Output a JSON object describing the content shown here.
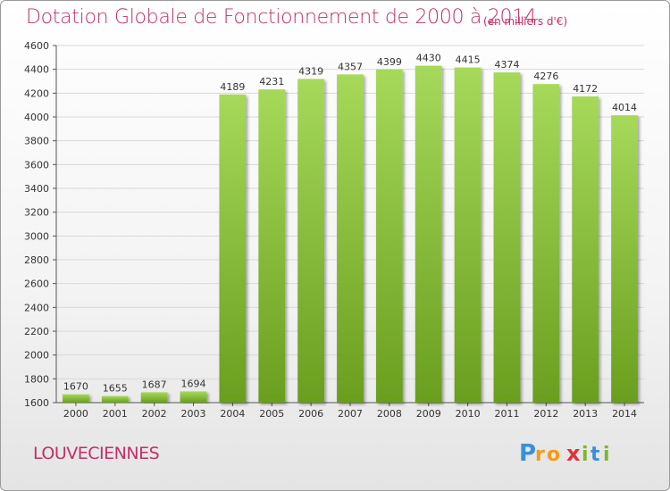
{
  "header": {
    "title": "Dotation Globale de Fonctionnement de 2000 à 2014",
    "subtitle": "(en milliers d'€)"
  },
  "footer": {
    "city": "LOUVECIENNES",
    "logo_text": "Proxiti"
  },
  "colors": {
    "title": "#c0306a",
    "bar_light": "#a6d95a",
    "bar_dark": "#6a9e1e",
    "grid": "#d8d8d8"
  },
  "chart_data": {
    "type": "bar",
    "title": "Dotation Globale de Fonctionnement de 2000 à 2014",
    "subtitle": "(en milliers d'€)",
    "categories": [
      "2000",
      "2001",
      "2002",
      "2003",
      "2004",
      "2005",
      "2006",
      "2007",
      "2008",
      "2009",
      "2010",
      "2011",
      "2012",
      "2013",
      "2014"
    ],
    "values": [
      1670,
      1655,
      1687,
      1694,
      4189,
      4231,
      4319,
      4357,
      4399,
      4430,
      4415,
      4374,
      4276,
      4172,
      4014
    ],
    "xlabel": "",
    "ylabel": "",
    "ylim": [
      1600,
      4600
    ],
    "yticks": [
      1600,
      1800,
      2000,
      2200,
      2400,
      2600,
      2800,
      3000,
      3200,
      3400,
      3600,
      3800,
      4000,
      4200,
      4400,
      4600
    ],
    "grid": true,
    "data_labels": true
  }
}
